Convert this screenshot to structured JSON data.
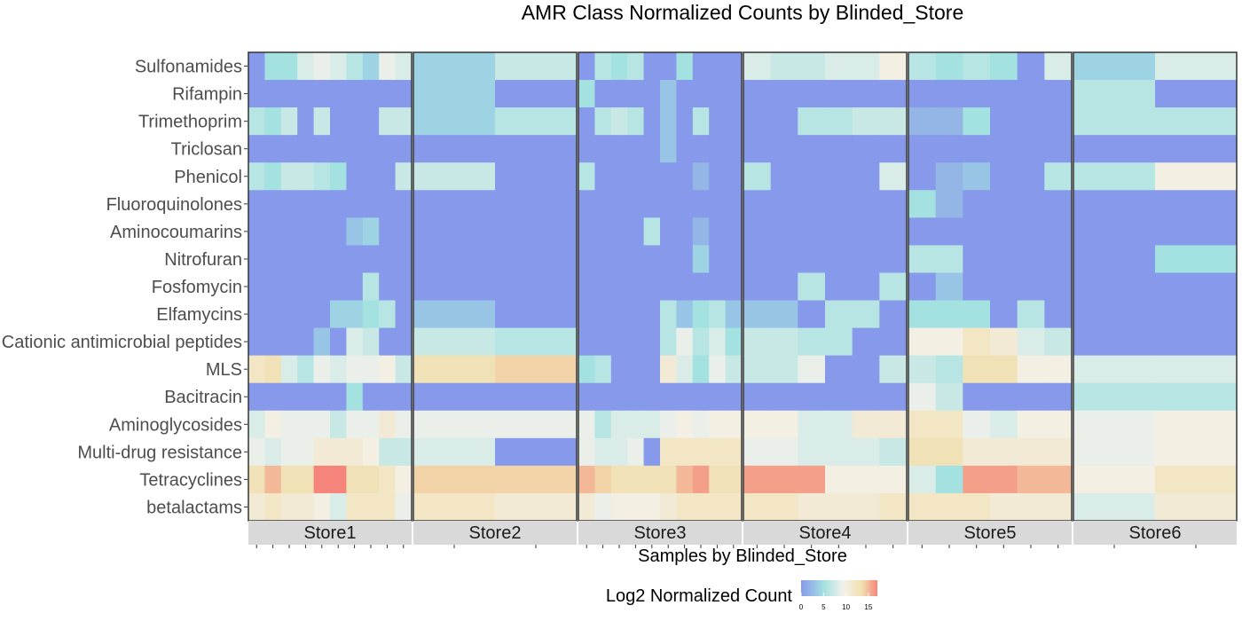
{
  "chart_data": {
    "type": "heatmap",
    "title": "AMR Class Normalized Counts by Blinded_Store",
    "xlabel": "Samples by Blinded_Store",
    "ylabel": "",
    "legend": {
      "title": "Log2 Normalized Count",
      "ticks": [
        0,
        5,
        10,
        15
      ],
      "range": [
        0,
        17
      ],
      "colors": [
        "#8799ea",
        "#a4e1e1",
        "#f3f1ea",
        "#f1dfae",
        "#f5857b"
      ],
      "placement": "bottom"
    },
    "rows": [
      "Sulfonamides",
      "Rifampin",
      "Trimethoprim",
      "Triclosan",
      "Phenicol",
      "Fluoroquinolones",
      "Aminocoumarins",
      "Nitrofuran",
      "Fosfomycin",
      "Elfamycins",
      "Cationic antimicrobial peptides",
      "MLS",
      "Bacitracin",
      "Aminoglycosides",
      "Multi-drug resistance",
      "Tetracyclines",
      "betalactams"
    ],
    "panels": [
      {
        "name": "Store1",
        "samples": 10,
        "values": [
          [
            0,
            5,
            5,
            8,
            9,
            8,
            6,
            4,
            9,
            8
          ],
          [
            0,
            0,
            0,
            0,
            0,
            0,
            0,
            0,
            0,
            0
          ],
          [
            6,
            5,
            7,
            0,
            7,
            0,
            0,
            0,
            7,
            7
          ],
          [
            0,
            0,
            0,
            0,
            0,
            0,
            0,
            0,
            0,
            0
          ],
          [
            6,
            5,
            7,
            7,
            6,
            5,
            0,
            0,
            0,
            7
          ],
          [
            0,
            0,
            0,
            0,
            0,
            0,
            0,
            0,
            0,
            0
          ],
          [
            0,
            0,
            0,
            0,
            0,
            0,
            3,
            4,
            0,
            0
          ],
          [
            0,
            0,
            0,
            0,
            0,
            0,
            0,
            0,
            0,
            0
          ],
          [
            0,
            0,
            0,
            0,
            0,
            0,
            0,
            6,
            0,
            0
          ],
          [
            0,
            0,
            0,
            0,
            0,
            4,
            4,
            5,
            6,
            0
          ],
          [
            0,
            0,
            0,
            0,
            3,
            0,
            8,
            7,
            0,
            0
          ],
          [
            12,
            13,
            8,
            6,
            9,
            8,
            9,
            9,
            10,
            7
          ],
          [
            0,
            0,
            0,
            0,
            0,
            0,
            5,
            0,
            0,
            0
          ],
          [
            8,
            10,
            9,
            9,
            9,
            7,
            9,
            9,
            11,
            9
          ],
          [
            9,
            8,
            9,
            9,
            11,
            11,
            11,
            10,
            7,
            7
          ],
          [
            13,
            15,
            13,
            13,
            17,
            17,
            13,
            13,
            12,
            10
          ],
          [
            11,
            12,
            11,
            11,
            10,
            8,
            12,
            12,
            12,
            9
          ]
        ]
      },
      {
        "name": "Store2",
        "samples": 2,
        "values": [
          [
            4,
            7
          ],
          [
            4,
            0
          ],
          [
            4,
            6
          ],
          [
            0,
            0
          ],
          [
            7,
            0
          ],
          [
            0,
            0
          ],
          [
            0,
            0
          ],
          [
            0,
            0
          ],
          [
            0,
            0
          ],
          [
            3,
            0
          ],
          [
            7,
            6
          ],
          [
            13,
            14
          ],
          [
            0,
            0
          ],
          [
            9,
            9
          ],
          [
            8,
            0
          ],
          [
            14,
            14
          ],
          [
            12,
            11
          ]
        ]
      },
      {
        "name": "Store3",
        "samples": 10,
        "values": [
          [
            0,
            6,
            5,
            6,
            0,
            0,
            5,
            0,
            0,
            0
          ],
          [
            5,
            0,
            0,
            0,
            0,
            3,
            0,
            0,
            0,
            0
          ],
          [
            0,
            6,
            7,
            6,
            0,
            3,
            0,
            6,
            0,
            0
          ],
          [
            0,
            0,
            0,
            0,
            0,
            3,
            0,
            0,
            0,
            0
          ],
          [
            6,
            0,
            0,
            0,
            0,
            0,
            0,
            2,
            0,
            0
          ],
          [
            0,
            0,
            0,
            0,
            0,
            0,
            0,
            0,
            0,
            0
          ],
          [
            0,
            0,
            0,
            0,
            6,
            0,
            0,
            2,
            0,
            0
          ],
          [
            0,
            0,
            0,
            0,
            0,
            0,
            0,
            4,
            0,
            0
          ],
          [
            0,
            0,
            0,
            0,
            0,
            0,
            0,
            0,
            0,
            0
          ],
          [
            0,
            0,
            0,
            0,
            0,
            6,
            3,
            5,
            6,
            3
          ],
          [
            0,
            0,
            0,
            0,
            0,
            6,
            9,
            6,
            8,
            5
          ],
          [
            5,
            6,
            0,
            0,
            0,
            11,
            8,
            5,
            9,
            7
          ],
          [
            0,
            0,
            0,
            0,
            0,
            0,
            0,
            0,
            0,
            0
          ],
          [
            9,
            6,
            8,
            8,
            8,
            9,
            10,
            9,
            10,
            10
          ],
          [
            9,
            8,
            8,
            9,
            0,
            12,
            12,
            12,
            12,
            12
          ],
          [
            15,
            14,
            13,
            13,
            13,
            13,
            15,
            16,
            13,
            13
          ],
          [
            11,
            9,
            10,
            10,
            10,
            11,
            12,
            12,
            12,
            12
          ]
        ]
      },
      {
        "name": "Store4",
        "samples": 6,
        "values": [
          [
            8,
            7,
            7,
            8,
            8,
            10
          ],
          [
            0,
            0,
            0,
            0,
            0,
            0
          ],
          [
            0,
            0,
            6,
            6,
            7,
            7
          ],
          [
            0,
            0,
            0,
            0,
            0,
            0
          ],
          [
            6,
            0,
            0,
            0,
            0,
            8
          ],
          [
            0,
            0,
            0,
            0,
            0,
            0
          ],
          [
            0,
            0,
            0,
            0,
            0,
            0
          ],
          [
            0,
            0,
            0,
            0,
            0,
            0
          ],
          [
            0,
            0,
            6,
            0,
            0,
            6
          ],
          [
            3,
            3,
            0,
            6,
            6,
            0
          ],
          [
            7,
            7,
            6,
            6,
            0,
            0
          ],
          [
            7,
            7,
            9,
            0,
            0,
            7
          ],
          [
            0,
            0,
            0,
            0,
            0,
            0
          ],
          [
            10,
            10,
            8,
            8,
            11,
            11
          ],
          [
            9,
            9,
            8,
            8,
            8,
            7
          ],
          [
            16,
            16,
            16,
            10,
            10,
            10
          ],
          [
            12,
            12,
            11,
            11,
            11,
            12
          ]
        ]
      },
      {
        "name": "Store5",
        "samples": 6,
        "values": [
          [
            6,
            5,
            6,
            5,
            0,
            8
          ],
          [
            0,
            0,
            0,
            0,
            0,
            0
          ],
          [
            2,
            2,
            5,
            0,
            0,
            0
          ],
          [
            0,
            0,
            0,
            0,
            0,
            0
          ],
          [
            0,
            2,
            3,
            0,
            0,
            6
          ],
          [
            5,
            2,
            0,
            0,
            0,
            0
          ],
          [
            0,
            0,
            0,
            0,
            0,
            0
          ],
          [
            6,
            6,
            0,
            0,
            0,
            0
          ],
          [
            0,
            3,
            0,
            0,
            0,
            0
          ],
          [
            5,
            5,
            5,
            0,
            6,
            0
          ],
          [
            10,
            10,
            12,
            11,
            8,
            7
          ],
          [
            7,
            6,
            13,
            13,
            10,
            10
          ],
          [
            9,
            7,
            0,
            0,
            0,
            0
          ],
          [
            12,
            12,
            9,
            8,
            10,
            10
          ],
          [
            13,
            13,
            11,
            11,
            11,
            11
          ],
          [
            8,
            5,
            16,
            16,
            15,
            15
          ],
          [
            12,
            12,
            12,
            11,
            11,
            11
          ]
        ]
      },
      {
        "name": "Store6",
        "samples": 2,
        "values": [
          [
            4,
            8
          ],
          [
            6,
            0
          ],
          [
            6,
            6
          ],
          [
            0,
            0
          ],
          [
            6,
            10
          ],
          [
            0,
            0
          ],
          [
            0,
            0
          ],
          [
            0,
            5
          ],
          [
            0,
            0
          ],
          [
            0,
            0
          ],
          [
            0,
            0
          ],
          [
            8,
            8
          ],
          [
            6,
            6
          ],
          [
            9,
            10
          ],
          [
            9,
            10
          ],
          [
            10,
            12
          ],
          [
            8,
            11
          ]
        ]
      }
    ]
  }
}
